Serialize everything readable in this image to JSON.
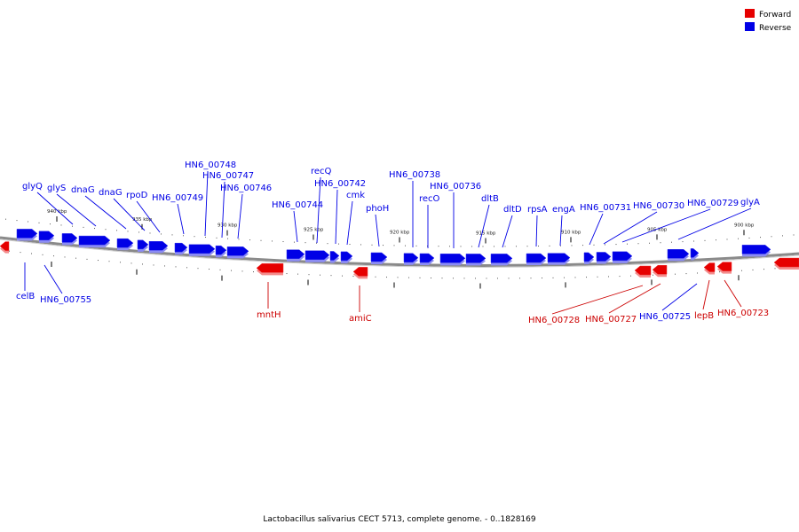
{
  "colors": {
    "forward": "#e60000",
    "reverse": "#0000e6",
    "backbone": "#8a8a8a"
  },
  "legend": {
    "forward_label": "Forward",
    "reverse_label": "Reverse"
  },
  "footer": {
    "caption": "Lactobacillus salivarius CECT 5713, complete genome. - 0..1828169"
  },
  "ruler": {
    "tick_labels": [
      "940 kbp",
      "935 kbp",
      "930 kbp",
      "925 kbp",
      "920 kbp",
      "915 kbp",
      "910 kbp",
      "905 kbp",
      "900 kbp"
    ]
  },
  "genes": {
    "reverse": [
      "glyQ",
      "glyS",
      "dnaG",
      "dnaG",
      "rpoD",
      "HN6_00749",
      "HN6_00748",
      "HN6_00747",
      "HN6_00746",
      "HN6_00744",
      "recQ",
      "HN6_00742",
      "cmk",
      "phoH",
      "HN6_00738",
      "HN6_00736",
      "recO",
      "dltB",
      "dltD",
      "rpsA",
      "engA",
      "HN6_00731",
      "HN6_00730",
      "HN6_00729",
      "glyA",
      "celB",
      "HN6_00755",
      "HN6_00725"
    ],
    "forward": [
      "mntH",
      "amiC",
      "HN6_00728",
      "HN6_00727",
      "lepB",
      "HN6_00723"
    ]
  }
}
